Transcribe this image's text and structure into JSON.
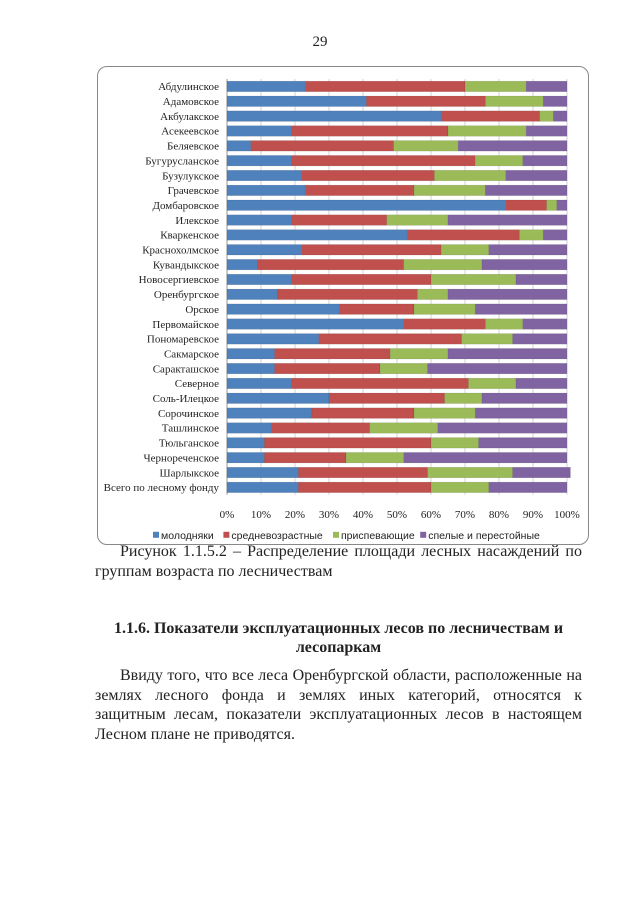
{
  "page_number": "29",
  "chart_data": {
    "type": "bar",
    "orientation": "horizontal",
    "stacked": "percent",
    "categories": [
      "Абдулинское",
      "Адамовское",
      "Акбулакское",
      "Асекеевское",
      "Беляевское",
      "Бугурусланское",
      "Бузулукское",
      "Грачевское",
      "Домбаровское",
      "Илекское",
      "Кваркенское",
      "Краснохолмское",
      "Кувандыкское",
      "Новосергиевское",
      "Оренбургское",
      "Орское",
      "Первомайское",
      "Пономаревское",
      "Сакмарское",
      "Саракташское",
      "Северное",
      "Соль-Илецкое",
      "Сорочинское",
      "Ташлинское",
      "Тюльганское",
      "Черноречeнское",
      "Шарлыкское",
      "Всего по лесному фонду"
    ],
    "series": [
      {
        "name": "молодняки",
        "color": "#4f81bd",
        "values": [
          23,
          41,
          63,
          19,
          7,
          19,
          22,
          23,
          82,
          19,
          53,
          22,
          9,
          19,
          15,
          33,
          52,
          27,
          14,
          14,
          19,
          30,
          25,
          13,
          11,
          11,
          21,
          21
        ]
      },
      {
        "name": "средневозрастные",
        "color": "#c0504d",
        "values": [
          47,
          35,
          29,
          46,
          42,
          54,
          39,
          32,
          12,
          28,
          33,
          41,
          43,
          41,
          41,
          22,
          24,
          42,
          34,
          31,
          52,
          34,
          30,
          29,
          49,
          24,
          38,
          39
        ]
      },
      {
        "name": "приспевающие",
        "color": "#9bbb59",
        "values": [
          18,
          17,
          4,
          23,
          19,
          14,
          21,
          21,
          3,
          18,
          7,
          14,
          23,
          25,
          9,
          18,
          11,
          15,
          17,
          14,
          14,
          11,
          18,
          20,
          14,
          17,
          25,
          17
        ]
      },
      {
        "name": "спелые и перестойные",
        "color": "#8064a2",
        "values": [
          12,
          7,
          4,
          12,
          32,
          13,
          18,
          24,
          3,
          35,
          7,
          23,
          25,
          15,
          35,
          27,
          13,
          16,
          35,
          41,
          15,
          25,
          27,
          38,
          26,
          48,
          17,
          23
        ]
      }
    ],
    "x_ticks": [
      "0%",
      "10%",
      "20%",
      "30%",
      "40%",
      "50%",
      "60%",
      "70%",
      "80%",
      "90%",
      "100%"
    ],
    "xlim": [
      0,
      100
    ],
    "grid": true,
    "legend": "bottom"
  },
  "caption": {
    "line1": "Рисунок 1.1.5.2 – Распределение площади лесных насаждений по",
    "line2": "группам возраста по лесничествам"
  },
  "heading": "1.1.6. Показатели эксплуатационных лесов по лесничествам и лесопаркам",
  "paragraph": "Ввиду того, что все леса Оренбургской области, расположенные на землях лесного фонда и землях иных категорий, относятся к защитным лесам, показатели эксплуатационных лесов в настоящем Лесном плане не приводятся."
}
